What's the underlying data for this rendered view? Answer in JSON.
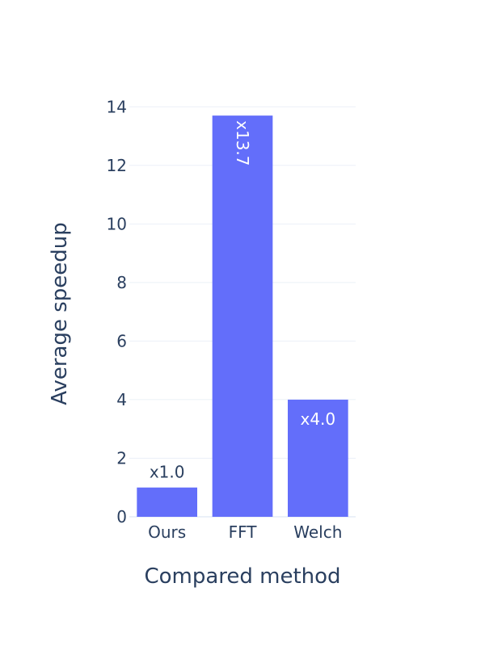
{
  "chart_data": {
    "type": "bar",
    "title": "",
    "xlabel": "Compared method",
    "ylabel": "Average speedup",
    "categories": [
      "Ours",
      "FFT",
      "Welch"
    ],
    "values": [
      1.0,
      13.7,
      4.0
    ],
    "data_labels": [
      "x1.0",
      "x13.7",
      "x4.0"
    ],
    "ylim": [
      0,
      14.2
    ],
    "yticks": [
      0,
      2,
      4,
      6,
      8,
      10,
      12,
      14
    ],
    "grid": true,
    "legend": "none",
    "colors": {
      "bar": "#636efa",
      "grid": "#ebf0f8",
      "text": "#2a3f5f",
      "background": "#ffffff"
    }
  }
}
